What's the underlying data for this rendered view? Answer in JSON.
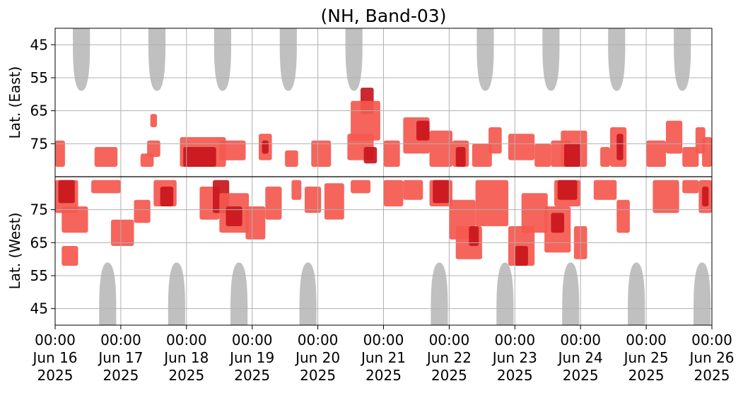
{
  "chart_data": {
    "type": "heatmap",
    "title": "(NH, Band-03)",
    "ylabel_top": "Lat. (East)",
    "ylabel_bottom": "Lat. (West)",
    "x_ticks": [
      {
        "day": 0,
        "time": "00:00",
        "date": "Jun 16",
        "year": "2025"
      },
      {
        "day": 1,
        "time": "00:00",
        "date": "Jun 17",
        "year": "2025"
      },
      {
        "day": 2,
        "time": "00:00",
        "date": "Jun 18",
        "year": "2025"
      },
      {
        "day": 3,
        "time": "00:00",
        "date": "Jun 19",
        "year": "2025"
      },
      {
        "day": 4,
        "time": "00:00",
        "date": "Jun 20",
        "year": "2025"
      },
      {
        "day": 5,
        "time": "00:00",
        "date": "Jun 21",
        "year": "2025"
      },
      {
        "day": 6,
        "time": "00:00",
        "date": "Jun 22",
        "year": "2025"
      },
      {
        "day": 7,
        "time": "00:00",
        "date": "Jun 23",
        "year": "2025"
      },
      {
        "day": 8,
        "time": "00:00",
        "date": "Jun 24",
        "year": "2025"
      },
      {
        "day": 9,
        "time": "00:00",
        "date": "Jun 25",
        "year": "2025"
      },
      {
        "day": 10,
        "time": "00:00",
        "date": "Jun 26",
        "year": "2025"
      }
    ],
    "xlim_days": [
      0,
      10
    ],
    "y_ticks_top": [
      {
        "v": 45,
        "label": "45"
      },
      {
        "v": 55,
        "label": "55"
      },
      {
        "v": 65,
        "label": "65"
      },
      {
        "v": 75,
        "label": "75"
      }
    ],
    "y_ticks_bottom": [
      {
        "v": 75,
        "label": "75"
      },
      {
        "v": 65,
        "label": "65"
      },
      {
        "v": 55,
        "label": "55"
      },
      {
        "v": 45,
        "label": "45"
      }
    ],
    "lat_range": [
      40,
      85
    ],
    "grid": true,
    "colors": {
      "low": "#f4584e",
      "high": "#c8161d",
      "daylight": "#c0c0c0",
      "grid": "#b0b0b0",
      "divider": "#000000"
    },
    "daylight_east": [
      {
        "center_day": 0.4,
        "min_lat": 59
      },
      {
        "center_day": 1.55,
        "min_lat": 59
      },
      {
        "center_day": 2.55,
        "min_lat": 59
      },
      {
        "center_day": 3.55,
        "min_lat": 59
      },
      {
        "center_day": 4.55,
        "min_lat": 59
      },
      {
        "center_day": 6.55,
        "min_lat": 59
      },
      {
        "center_day": 7.55,
        "min_lat": 59
      },
      {
        "center_day": 8.55,
        "min_lat": 59
      },
      {
        "center_day": 9.55,
        "min_lat": 59
      }
    ],
    "daylight_west": [
      {
        "center_day": 0.8,
        "min_lat": 59
      },
      {
        "center_day": 1.85,
        "min_lat": 59
      },
      {
        "center_day": 2.8,
        "min_lat": 59
      },
      {
        "center_day": 3.85,
        "min_lat": 59
      },
      {
        "center_day": 5.85,
        "min_lat": 59
      },
      {
        "center_day": 6.85,
        "min_lat": 59
      },
      {
        "center_day": 7.85,
        "min_lat": 59
      },
      {
        "center_day": 8.85,
        "min_lat": 59
      },
      {
        "center_day": 9.85,
        "min_lat": 59
      }
    ],
    "activity_east": [
      {
        "d0": 0.0,
        "d1": 0.15,
        "lat0": 74,
        "lat1": 82,
        "level": "low"
      },
      {
        "d0": 0.6,
        "d1": 0.95,
        "lat0": 76,
        "lat1": 82,
        "level": "low"
      },
      {
        "d0": 1.3,
        "d1": 1.5,
        "lat0": 78,
        "lat1": 82,
        "level": "low"
      },
      {
        "d0": 1.4,
        "d1": 1.6,
        "lat0": 74,
        "lat1": 79,
        "level": "low"
      },
      {
        "d0": 1.45,
        "d1": 1.55,
        "lat0": 66,
        "lat1": 70,
        "level": "low"
      },
      {
        "d0": 1.9,
        "d1": 2.6,
        "lat0": 73,
        "lat1": 82,
        "level": "low"
      },
      {
        "d0": 1.95,
        "d1": 2.45,
        "lat0": 76,
        "lat1": 82,
        "level": "high"
      },
      {
        "d0": 2.5,
        "d1": 2.9,
        "lat0": 74,
        "lat1": 80,
        "level": "low"
      },
      {
        "d0": 3.1,
        "d1": 3.3,
        "lat0": 72,
        "lat1": 80,
        "level": "low"
      },
      {
        "d0": 3.15,
        "d1": 3.25,
        "lat0": 74,
        "lat1": 78,
        "level": "high"
      },
      {
        "d0": 3.5,
        "d1": 3.7,
        "lat0": 77,
        "lat1": 82,
        "level": "low"
      },
      {
        "d0": 3.9,
        "d1": 4.2,
        "lat0": 74,
        "lat1": 82,
        "level": "low"
      },
      {
        "d0": 4.45,
        "d1": 4.85,
        "lat0": 72,
        "lat1": 80,
        "level": "low"
      },
      {
        "d0": 4.65,
        "d1": 4.85,
        "lat0": 58,
        "lat1": 66,
        "level": "high"
      },
      {
        "d0": 4.5,
        "d1": 4.95,
        "lat0": 62,
        "lat1": 74,
        "level": "low"
      },
      {
        "d0": 4.7,
        "d1": 4.9,
        "lat0": 76,
        "lat1": 81,
        "level": "high"
      },
      {
        "d0": 5.0,
        "d1": 5.25,
        "lat0": 74,
        "lat1": 82,
        "level": "low"
      },
      {
        "d0": 5.3,
        "d1": 5.7,
        "lat0": 67,
        "lat1": 78,
        "level": "low"
      },
      {
        "d0": 5.5,
        "d1": 5.7,
        "lat0": 68,
        "lat1": 74,
        "level": "high"
      },
      {
        "d0": 5.7,
        "d1": 6.05,
        "lat0": 71,
        "lat1": 82,
        "level": "low"
      },
      {
        "d0": 6.05,
        "d1": 6.3,
        "lat0": 74,
        "lat1": 82,
        "level": "low"
      },
      {
        "d0": 6.1,
        "d1": 6.25,
        "lat0": 76,
        "lat1": 82,
        "level": "high"
      },
      {
        "d0": 6.35,
        "d1": 6.65,
        "lat0": 75,
        "lat1": 82,
        "level": "low"
      },
      {
        "d0": 6.6,
        "d1": 6.8,
        "lat0": 70,
        "lat1": 78,
        "level": "low"
      },
      {
        "d0": 6.9,
        "d1": 7.3,
        "lat0": 72,
        "lat1": 80,
        "level": "low"
      },
      {
        "d0": 7.3,
        "d1": 7.55,
        "lat0": 75,
        "lat1": 82,
        "level": "low"
      },
      {
        "d0": 7.55,
        "d1": 7.85,
        "lat0": 74,
        "lat1": 82,
        "level": "low"
      },
      {
        "d0": 7.7,
        "d1": 8.1,
        "lat0": 71,
        "lat1": 82,
        "level": "low"
      },
      {
        "d0": 7.75,
        "d1": 8.0,
        "lat0": 75,
        "lat1": 82,
        "level": "high"
      },
      {
        "d0": 8.3,
        "d1": 8.45,
        "lat0": 76,
        "lat1": 82,
        "level": "low"
      },
      {
        "d0": 8.45,
        "d1": 8.7,
        "lat0": 70,
        "lat1": 82,
        "level": "low"
      },
      {
        "d0": 8.55,
        "d1": 8.65,
        "lat0": 72,
        "lat1": 80,
        "level": "high"
      },
      {
        "d0": 9.0,
        "d1": 9.3,
        "lat0": 74,
        "lat1": 82,
        "level": "low"
      },
      {
        "d0": 9.3,
        "d1": 9.55,
        "lat0": 68,
        "lat1": 78,
        "level": "low"
      },
      {
        "d0": 9.55,
        "d1": 9.8,
        "lat0": 76,
        "lat1": 82,
        "level": "low"
      },
      {
        "d0": 9.75,
        "d1": 9.9,
        "lat0": 70,
        "lat1": 78,
        "level": "low"
      },
      {
        "d0": 9.85,
        "d1": 10.0,
        "lat0": 73,
        "lat1": 82,
        "level": "low"
      }
    ],
    "activity_west": [
      {
        "d0": 0.0,
        "d1": 0.35,
        "lat0": 74,
        "lat1": 84,
        "level": "low"
      },
      {
        "d0": 0.05,
        "d1": 0.3,
        "lat0": 77,
        "lat1": 84,
        "level": "high"
      },
      {
        "d0": 0.1,
        "d1": 0.5,
        "lat0": 68,
        "lat1": 76,
        "level": "low"
      },
      {
        "d0": 0.1,
        "d1": 0.35,
        "lat0": 58,
        "lat1": 64,
        "level": "low"
      },
      {
        "d0": 0.55,
        "d1": 1.0,
        "lat0": 80,
        "lat1": 84,
        "level": "low"
      },
      {
        "d0": 0.85,
        "d1": 1.2,
        "lat0": 64,
        "lat1": 72,
        "level": "low"
      },
      {
        "d0": 1.2,
        "d1": 1.45,
        "lat0": 71,
        "lat1": 78,
        "level": "low"
      },
      {
        "d0": 1.5,
        "d1": 1.85,
        "lat0": 76,
        "lat1": 84,
        "level": "low"
      },
      {
        "d0": 1.6,
        "d1": 1.8,
        "lat0": 76,
        "lat1": 82,
        "level": "high"
      },
      {
        "d0": 2.2,
        "d1": 2.5,
        "lat0": 72,
        "lat1": 82,
        "level": "low"
      },
      {
        "d0": 2.4,
        "d1": 2.65,
        "lat0": 74,
        "lat1": 84,
        "level": "high"
      },
      {
        "d0": 2.5,
        "d1": 2.95,
        "lat0": 68,
        "lat1": 80,
        "level": "low"
      },
      {
        "d0": 2.6,
        "d1": 2.85,
        "lat0": 70,
        "lat1": 76,
        "level": "high"
      },
      {
        "d0": 2.9,
        "d1": 3.2,
        "lat0": 66,
        "lat1": 76,
        "level": "low"
      },
      {
        "d0": 3.2,
        "d1": 3.45,
        "lat0": 72,
        "lat1": 82,
        "level": "low"
      },
      {
        "d0": 3.6,
        "d1": 3.75,
        "lat0": 78,
        "lat1": 84,
        "level": "low"
      },
      {
        "d0": 3.8,
        "d1": 4.05,
        "lat0": 74,
        "lat1": 82,
        "level": "low"
      },
      {
        "d0": 4.1,
        "d1": 4.4,
        "lat0": 72,
        "lat1": 83,
        "level": "low"
      },
      {
        "d0": 4.5,
        "d1": 4.8,
        "lat0": 80,
        "lat1": 84,
        "level": "low"
      },
      {
        "d0": 5.0,
        "d1": 5.3,
        "lat0": 76,
        "lat1": 84,
        "level": "low"
      },
      {
        "d0": 5.3,
        "d1": 5.6,
        "lat0": 78,
        "lat1": 84,
        "level": "low"
      },
      {
        "d0": 5.7,
        "d1": 6.05,
        "lat0": 76,
        "lat1": 84,
        "level": "low"
      },
      {
        "d0": 5.75,
        "d1": 6.0,
        "lat0": 77,
        "lat1": 84,
        "level": "high"
      },
      {
        "d0": 6.0,
        "d1": 6.4,
        "lat0": 66,
        "lat1": 78,
        "level": "low"
      },
      {
        "d0": 6.1,
        "d1": 6.5,
        "lat0": 60,
        "lat1": 70,
        "level": "low"
      },
      {
        "d0": 6.3,
        "d1": 6.45,
        "lat0": 64,
        "lat1": 70,
        "level": "high"
      },
      {
        "d0": 6.4,
        "d1": 6.9,
        "lat0": 70,
        "lat1": 84,
        "level": "low"
      },
      {
        "d0": 6.9,
        "d1": 7.3,
        "lat0": 58,
        "lat1": 70,
        "level": "low"
      },
      {
        "d0": 7.0,
        "d1": 7.2,
        "lat0": 58,
        "lat1": 64,
        "level": "high"
      },
      {
        "d0": 7.1,
        "d1": 7.5,
        "lat0": 68,
        "lat1": 80,
        "level": "low"
      },
      {
        "d0": 7.45,
        "d1": 7.85,
        "lat0": 62,
        "lat1": 76,
        "level": "low"
      },
      {
        "d0": 7.55,
        "d1": 7.75,
        "lat0": 68,
        "lat1": 74,
        "level": "high"
      },
      {
        "d0": 7.6,
        "d1": 8.0,
        "lat0": 76,
        "lat1": 84,
        "level": "low"
      },
      {
        "d0": 7.65,
        "d1": 7.95,
        "lat0": 78,
        "lat1": 84,
        "level": "high"
      },
      {
        "d0": 7.9,
        "d1": 8.1,
        "lat0": 60,
        "lat1": 70,
        "level": "low"
      },
      {
        "d0": 8.2,
        "d1": 8.55,
        "lat0": 78,
        "lat1": 84,
        "level": "low"
      },
      {
        "d0": 8.55,
        "d1": 8.75,
        "lat0": 68,
        "lat1": 78,
        "level": "low"
      },
      {
        "d0": 9.1,
        "d1": 9.5,
        "lat0": 74,
        "lat1": 84,
        "level": "low"
      },
      {
        "d0": 9.55,
        "d1": 9.8,
        "lat0": 80,
        "lat1": 84,
        "level": "low"
      },
      {
        "d0": 9.8,
        "d1": 10.0,
        "lat0": 74,
        "lat1": 84,
        "level": "low"
      },
      {
        "d0": 9.85,
        "d1": 9.95,
        "lat0": 76,
        "lat1": 82,
        "level": "high"
      }
    ]
  }
}
